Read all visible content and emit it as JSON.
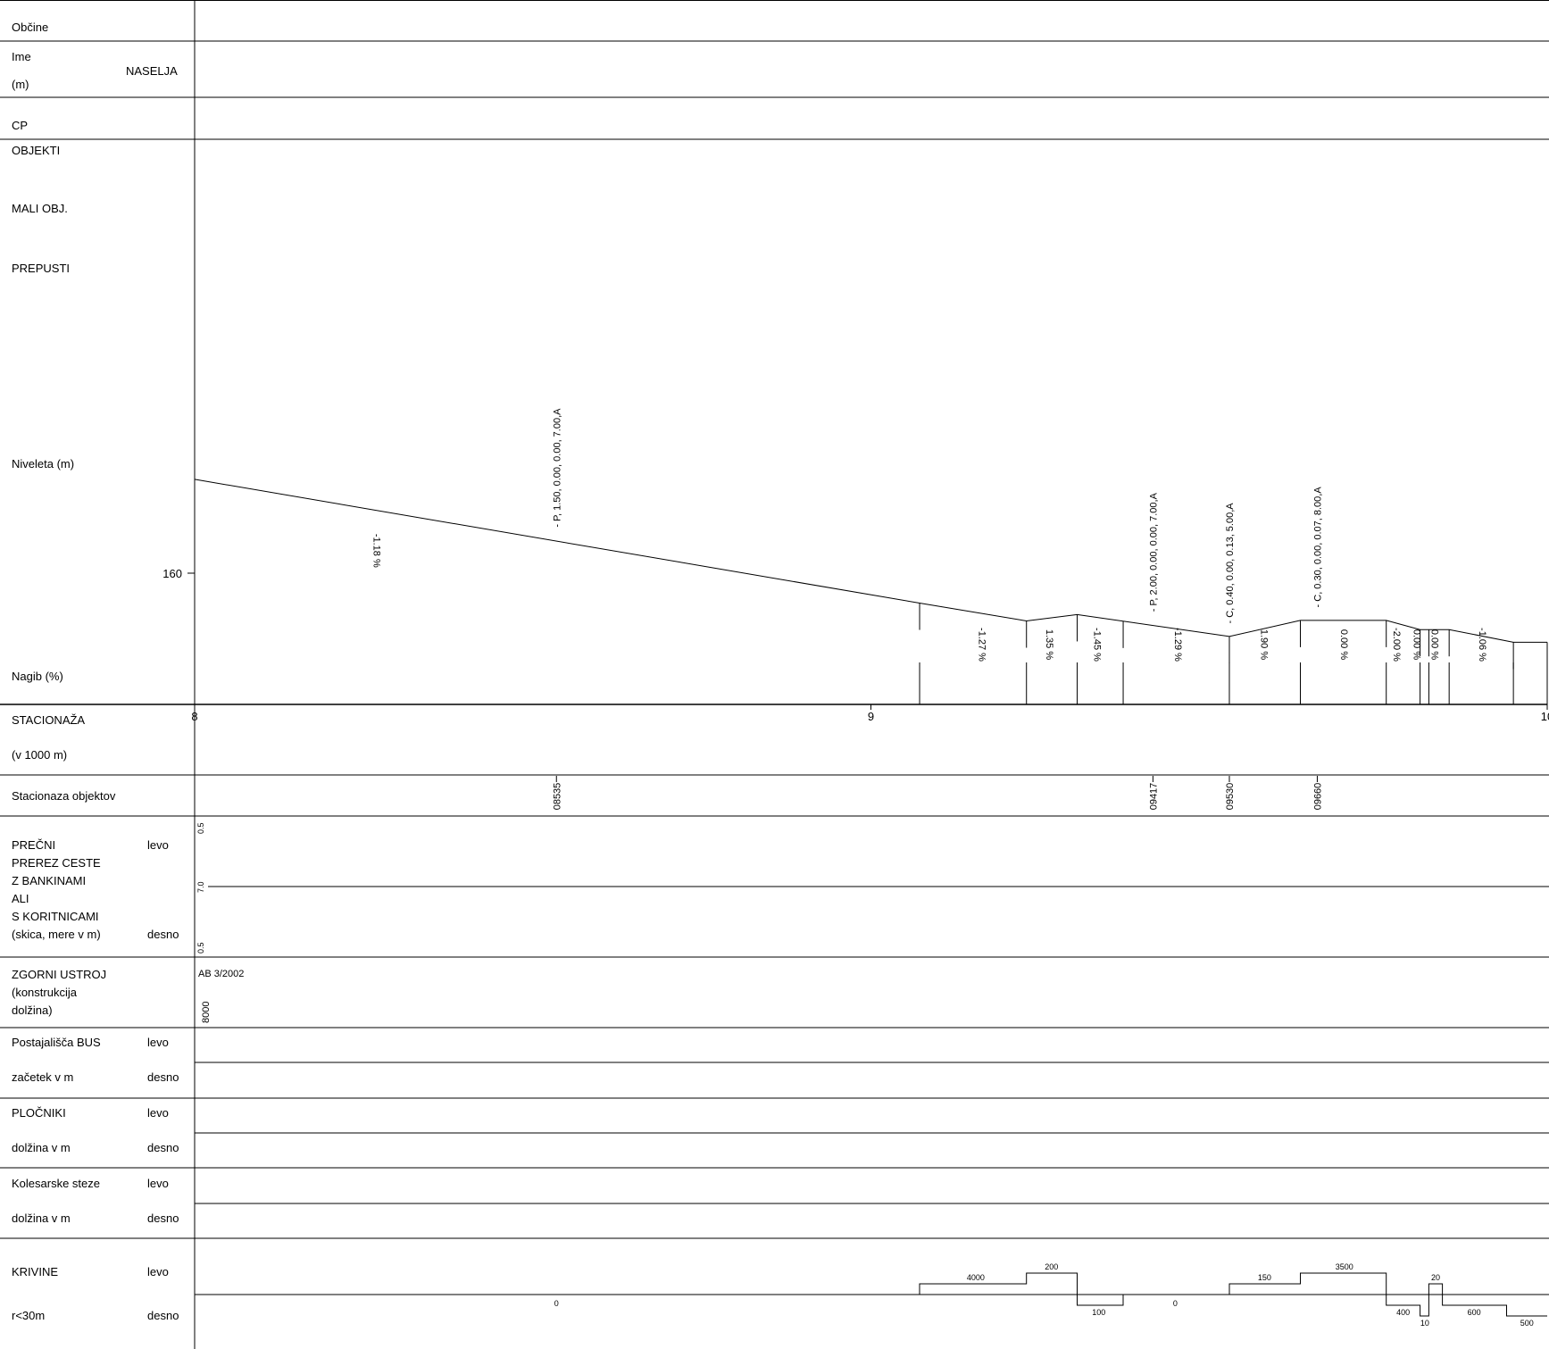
{
  "rows": {
    "obcine": "Občine",
    "ime": "Ime",
    "ime_unit": "(m)",
    "naselja": "NASELJA",
    "cp": "CP",
    "objekti": "OBJEKTI",
    "mali_obj": "MALI OBJ.",
    "prepusti": "PREPUSTI",
    "niveleta": "Niveleta (m)",
    "nagib": "Nagib (%)",
    "stacionaza": "STACIONAŽA",
    "stacionaza_unit": "(v  1000 m)",
    "stacionaza_objektov": "Stacionaza objektov",
    "precni_lines": [
      "PREČNI",
      "PREREZ CESTE",
      "Z BANKINAMI",
      "ALI",
      "S KORITNICAMI",
      "(skica, mere v m)"
    ],
    "levo": "levo",
    "desno": "desno",
    "zgornji_lines": [
      "ZGORNI USTROJ",
      "(konstrukcija",
      "dolžina)"
    ],
    "postajalisca": "Postajališča BUS",
    "zacetek": " začetek v m",
    "plocniki": "PLOČNIKI",
    "dolzina": " dolžina v m",
    "kolesarske": "Kolesarske steze",
    "krivine": "KRIVINE",
    "krivine_sub": " r<30m"
  },
  "chart_data": {
    "type": "line",
    "title": "",
    "xlabel": "STACIONAŽA (v  1000 m)",
    "ylabel": "Niveleta (m)",
    "xlim": [
      8000,
      10000
    ],
    "elevation_tick": {
      "value": 160,
      "label": "160"
    },
    "station_ticks": [
      {
        "value": 8000,
        "label": "8"
      },
      {
        "value": 9000,
        "label": "9"
      },
      {
        "value": 10000,
        "label": "10"
      }
    ],
    "profile": {
      "x": [
        8000,
        9072,
        9230,
        9305,
        9530,
        9635,
        9762,
        9812,
        9855,
        9950,
        10000
      ],
      "y": [
        161.63,
        159.48,
        159.17,
        159.28,
        158.9,
        159.18,
        159.18,
        159.02,
        159.02,
        158.8,
        158.8
      ]
    },
    "slope_breaks": [
      9072,
      9230,
      9305,
      9373,
      9530,
      9635,
      9762,
      9812,
      9825,
      9855,
      9950,
      10000
    ],
    "slopes": [
      {
        "x": 8270,
        "label": "-1.18 %"
      },
      {
        "x": 9165,
        "label": "-1.27 %"
      },
      {
        "x": 9265,
        "label": "1.35 %"
      },
      {
        "x": 9335,
        "label": "-1.45 %"
      },
      {
        "x": 9455,
        "label": "-1.29 %"
      },
      {
        "x": 9582,
        "label": "1.90 %"
      },
      {
        "x": 9700,
        "label": "0.00 %"
      },
      {
        "x": 9778,
        "label": "-2.00 %"
      },
      {
        "x": 9808,
        "label": "0.00 %"
      },
      {
        "x": 9834,
        "label": "0.00 %"
      },
      {
        "x": 9905,
        "label": "-1.06 %"
      }
    ],
    "objects": [
      {
        "x": 8535,
        "label": "- P, 1.50, 0.00, 0.00, 7.00,A",
        "station": "08535"
      },
      {
        "x": 9417,
        "label": "- P, 2.00, 0.00, 0.00, 7.00,A",
        "station": "09417"
      },
      {
        "x": 9530,
        "label": "- C, 0.40, 0.00, 0.13, 5.00,A",
        "station": "09530"
      },
      {
        "x": 9660,
        "label": "- C, 0.30, 0.00, 0.07, 8.00,A",
        "station": "09660"
      }
    ],
    "cross_section": {
      "left": "0.5",
      "width": "7.0",
      "right": "0.5"
    },
    "pavement": {
      "type": "AB 3/2002",
      "length": "8000"
    },
    "curves": {
      "points": [
        {
          "x": 8000,
          "r": 0
        },
        {
          "x": 9072,
          "r": 1
        },
        {
          "x": 9230,
          "r": 2
        },
        {
          "x": 9305,
          "r": -1
        },
        {
          "x": 9373,
          "r": 0
        },
        {
          "x": 9530,
          "r": 1
        },
        {
          "x": 9635,
          "r": 2
        },
        {
          "x": 9762,
          "r": -1
        },
        {
          "x": 9812,
          "r": -2
        },
        {
          "x": 9825,
          "r": 1
        },
        {
          "x": 9845,
          "r": -1
        },
        {
          "x": 9940,
          "r": -2
        },
        {
          "x": 10000,
          "r": -2
        }
      ],
      "labels": [
        {
          "x": 8535,
          "r": 0,
          "text": "0"
        },
        {
          "x": 9155,
          "r": 1,
          "text": "4000"
        },
        {
          "x": 9267,
          "r": 2,
          "text": "200"
        },
        {
          "x": 9337,
          "r": -1,
          "text": "100"
        },
        {
          "x": 9450,
          "r": 0,
          "text": "0"
        },
        {
          "x": 9582,
          "r": 1,
          "text": "150"
        },
        {
          "x": 9700,
          "r": 2,
          "text": "3500"
        },
        {
          "x": 9787,
          "r": -1,
          "text": "400"
        },
        {
          "x": 9819,
          "r": -2,
          "text": "10"
        },
        {
          "x": 9835,
          "r": 1,
          "text": "20"
        },
        {
          "x": 9892,
          "r": -1,
          "text": "600"
        },
        {
          "x": 9970,
          "r": -2,
          "text": "500"
        }
      ]
    }
  }
}
